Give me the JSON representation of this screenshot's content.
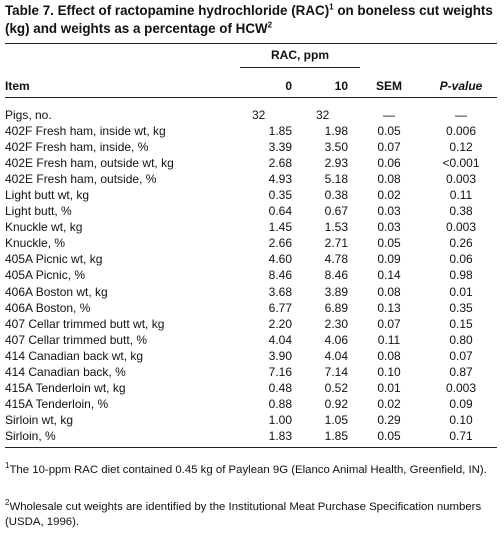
{
  "title": {
    "part1": "Table 7. Effect of ractopamine hydrochloride (RAC)",
    "sup1": "1",
    "part2": " on boneless cut weights (kg) and weights as a percentage of HCW",
    "sup2": "2"
  },
  "header": {
    "rac": "RAC, ppm",
    "item": "Item",
    "col0": "0",
    "col10": "10",
    "sem": "SEM",
    "p": "P-value"
  },
  "rows": [
    {
      "item": "Pigs, no.",
      "v0": "32",
      "v10": "32",
      "sem": "—",
      "p": "—"
    },
    {
      "item": "402F Fresh ham, inside wt, kg",
      "v0": "1.85",
      "v10": "1.98",
      "sem": "0.05",
      "p": "0.006"
    },
    {
      "item": "402F Fresh ham, inside, %",
      "v0": "3.39",
      "v10": "3.50",
      "sem": "0.07",
      "p": "0.12"
    },
    {
      "item": "402E Fresh ham, outside wt, kg",
      "v0": "2.68",
      "v10": "2.93",
      "sem": "0.06",
      "p": "<0.001"
    },
    {
      "item": "402E Fresh ham, outside, %",
      "v0": "4.93",
      "v10": "5.18",
      "sem": "0.08",
      "p": "0.003"
    },
    {
      "item": "Light butt wt, kg",
      "v0": "0.35",
      "v10": "0.38",
      "sem": "0.02",
      "p": "0.11"
    },
    {
      "item": "Light butt, %",
      "v0": "0.64",
      "v10": "0.67",
      "sem": "0.03",
      "p": "0.38"
    },
    {
      "item": "Knuckle wt, kg",
      "v0": "1.45",
      "v10": "1.53",
      "sem": "0.03",
      "p": "0.003"
    },
    {
      "item": "Knuckle, %",
      "v0": "2.66",
      "v10": "2.71",
      "sem": "0.05",
      "p": "0.26"
    },
    {
      "item": "405A Picnic wt, kg",
      "v0": "4.60",
      "v10": "4.78",
      "sem": "0.09",
      "p": "0.06"
    },
    {
      "item": "405A Picnic, %",
      "v0": "8.46",
      "v10": "8.46",
      "sem": "0.14",
      "p": "0.98"
    },
    {
      "item": "406A Boston wt, kg",
      "v0": "3.68",
      "v10": "3.89",
      "sem": "0.08",
      "p": "0.01"
    },
    {
      "item": "406A Boston, %",
      "v0": "6.77",
      "v10": "6.89",
      "sem": "0.13",
      "p": "0.35"
    },
    {
      "item": "407 Cellar trimmed butt wt, kg",
      "v0": "2.20",
      "v10": "2.30",
      "sem": "0.07",
      "p": "0.15"
    },
    {
      "item": "407 Cellar trimmed butt, %",
      "v0": "4.04",
      "v10": "4.06",
      "sem": "0.11",
      "p": "0.80"
    },
    {
      "item": "414 Canadian back wt, kg",
      "v0": "3.90",
      "v10": "4.04",
      "sem": "0.08",
      "p": "0.07"
    },
    {
      "item": "414 Canadian back, %",
      "v0": "7.16",
      "v10": "7.14",
      "sem": "0.10",
      "p": "0.87"
    },
    {
      "item": "415A Tenderloin wt, kg",
      "v0": "0.48",
      "v10": "0.52",
      "sem": "0.01",
      "p": "0.003"
    },
    {
      "item": "415A Tenderloin, %",
      "v0": "0.88",
      "v10": "0.92",
      "sem": "0.02",
      "p": "0.09"
    },
    {
      "item": "Sirloin wt, kg",
      "v0": "1.00",
      "v10": "1.05",
      "sem": "0.29",
      "p": "0.10"
    },
    {
      "item": "Sirloin, %",
      "v0": "1.83",
      "v10": "1.85",
      "sem": "0.05",
      "p": "0.71"
    }
  ],
  "footnotes": [
    {
      "mark": "1",
      "text": "The 10-ppm RAC diet contained 0.45 kg of Paylean 9G (Elanco Animal Health, Greenfield, IN)."
    },
    {
      "mark": "2",
      "text": "Wholesale cut weights are identified by the Institutional Meat Purchase Specification numbers (USDA, 1996)."
    }
  ]
}
